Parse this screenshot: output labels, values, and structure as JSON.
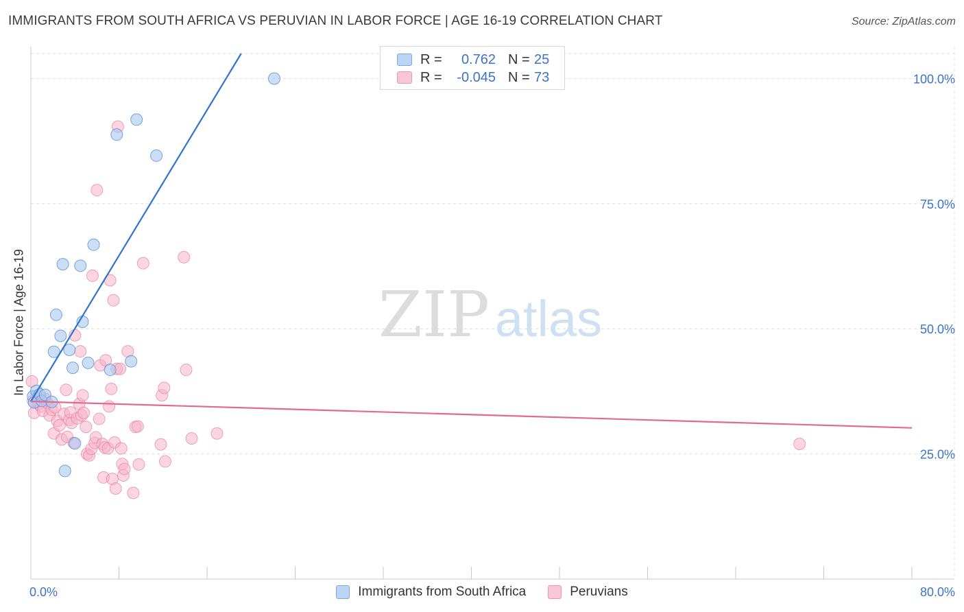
{
  "header": {
    "title": "IMMIGRANTS FROM SOUTH AFRICA VS PERUVIAN IN LABOR FORCE | AGE 16-19 CORRELATION CHART",
    "source": "Source: ZipAtlas.com"
  },
  "watermark": {
    "zip": "ZIP",
    "atlas": "atlas"
  },
  "legend_top": {
    "rows": [
      {
        "r_label": "R =",
        "r_value": "0.762",
        "n_label": "N =",
        "n_value": "25"
      },
      {
        "r_label": "R =",
        "r_value": "-0.045",
        "n_label": "N =",
        "n_value": "73"
      }
    ]
  },
  "legend_bottom": {
    "items": [
      "Immigrants from South Africa",
      "Peruvians"
    ]
  },
  "colors": {
    "blue_fill": "#a9c8f0",
    "blue_stroke": "#5b8fd6",
    "blue_line": "#2f72d0",
    "pink_fill": "#f7b3c8",
    "pink_stroke": "#e57fa0",
    "pink_line": "#e5698f",
    "tick_label": "#3b73c9",
    "grid": "#dcdcdc"
  },
  "chart_data": {
    "type": "scatter",
    "title": "IMMIGRANTS FROM SOUTH AFRICA VS PERUVIAN IN LABOR FORCE | AGE 16-19 CORRELATION CHART",
    "xlabel": "",
    "ylabel": "In Labor Force | Age 16-19",
    "xlim": [
      0,
      80
    ],
    "ylim": [
      0,
      105
    ],
    "x_tick_labels": [
      "0.0%",
      "80.0%"
    ],
    "y_ticks": [
      25,
      50,
      75,
      100
    ],
    "y_tick_labels": [
      "25.0%",
      "50.0%",
      "75.0%",
      "100.0%"
    ],
    "grid": true,
    "legend_position": "top-center",
    "series": [
      {
        "name": "Immigrants from South Africa",
        "r": 0.762,
        "n": 25,
        "trend": {
          "x": [
            0.0,
            19.1
          ],
          "y": [
            35.5,
            105.0
          ]
        },
        "points": [
          [
            0.2,
            36.5
          ],
          [
            0.3,
            35.3
          ],
          [
            0.5,
            37.6
          ],
          [
            0.8,
            36.9
          ],
          [
            1.0,
            35.6
          ],
          [
            1.3,
            36.8
          ],
          [
            1.9,
            35.4
          ],
          [
            2.3,
            52.8
          ],
          [
            2.7,
            48.6
          ],
          [
            2.9,
            62.9
          ],
          [
            3.1,
            21.6
          ],
          [
            3.5,
            45.8
          ],
          [
            2.1,
            45.4
          ],
          [
            3.8,
            42.2
          ],
          [
            4.0,
            27.1
          ],
          [
            4.5,
            62.6
          ],
          [
            4.7,
            51.4
          ],
          [
            5.2,
            43.2
          ],
          [
            5.7,
            66.8
          ],
          [
            7.2,
            41.8
          ],
          [
            7.8,
            88.8
          ],
          [
            9.1,
            43.5
          ],
          [
            9.6,
            91.8
          ],
          [
            11.4,
            84.6
          ],
          [
            22.1,
            100.0
          ]
        ]
      },
      {
        "name": "Peruvians",
        "r": -0.045,
        "n": 73,
        "trend": {
          "x": [
            0.0,
            80.0
          ],
          "y": [
            35.5,
            30.2
          ]
        },
        "points": [
          [
            0.1,
            39.5
          ],
          [
            0.2,
            35.6
          ],
          [
            0.3,
            33.2
          ],
          [
            0.5,
            36.6
          ],
          [
            0.7,
            35.0
          ],
          [
            0.9,
            34.5
          ],
          [
            1.1,
            33.6
          ],
          [
            1.3,
            36.0
          ],
          [
            1.5,
            35.2
          ],
          [
            1.7,
            32.7
          ],
          [
            1.9,
            33.8
          ],
          [
            2.1,
            29.1
          ],
          [
            2.2,
            34.3
          ],
          [
            2.4,
            31.6
          ],
          [
            2.6,
            30.7
          ],
          [
            2.8,
            27.9
          ],
          [
            3.0,
            33.0
          ],
          [
            3.2,
            37.8
          ],
          [
            3.3,
            28.4
          ],
          [
            3.5,
            31.8
          ],
          [
            3.6,
            33.3
          ],
          [
            3.7,
            31.2
          ],
          [
            3.9,
            27.2
          ],
          [
            4.0,
            48.7
          ],
          [
            4.2,
            32.1
          ],
          [
            4.4,
            35.0
          ],
          [
            4.5,
            45.5
          ],
          [
            4.6,
            32.7
          ],
          [
            4.7,
            36.7
          ],
          [
            4.8,
            33.2
          ],
          [
            5.0,
            30.4
          ],
          [
            5.1,
            25.0
          ],
          [
            5.3,
            24.7
          ],
          [
            5.5,
            26.0
          ],
          [
            5.6,
            60.6
          ],
          [
            5.8,
            27.2
          ],
          [
            5.9,
            28.3
          ],
          [
            6.0,
            77.7
          ],
          [
            6.2,
            32.0
          ],
          [
            6.3,
            42.7
          ],
          [
            6.5,
            27.0
          ],
          [
            6.6,
            20.3
          ],
          [
            6.7,
            26.3
          ],
          [
            6.8,
            43.7
          ],
          [
            7.0,
            26.1
          ],
          [
            7.1,
            34.5
          ],
          [
            7.2,
            59.7
          ],
          [
            7.3,
            38.0
          ],
          [
            7.4,
            20.0
          ],
          [
            7.5,
            55.7
          ],
          [
            7.6,
            27.3
          ],
          [
            7.7,
            18.1
          ],
          [
            7.8,
            42.0
          ],
          [
            7.9,
            90.4
          ],
          [
            8.1,
            42.0
          ],
          [
            8.2,
            26.1
          ],
          [
            8.3,
            23.0
          ],
          [
            8.4,
            20.7
          ],
          [
            8.5,
            22.0
          ],
          [
            8.8,
            45.5
          ],
          [
            9.3,
            17.2
          ],
          [
            9.5,
            30.4
          ],
          [
            9.7,
            30.5
          ],
          [
            9.8,
            22.9
          ],
          [
            10.2,
            63.1
          ],
          [
            11.8,
            26.9
          ],
          [
            11.9,
            36.7
          ],
          [
            12.1,
            38.2
          ],
          [
            12.2,
            23.5
          ],
          [
            13.9,
            64.3
          ],
          [
            14.1,
            41.8
          ],
          [
            14.6,
            28.1
          ],
          [
            16.9,
            29.1
          ],
          [
            69.8,
            27.0
          ]
        ]
      }
    ]
  }
}
